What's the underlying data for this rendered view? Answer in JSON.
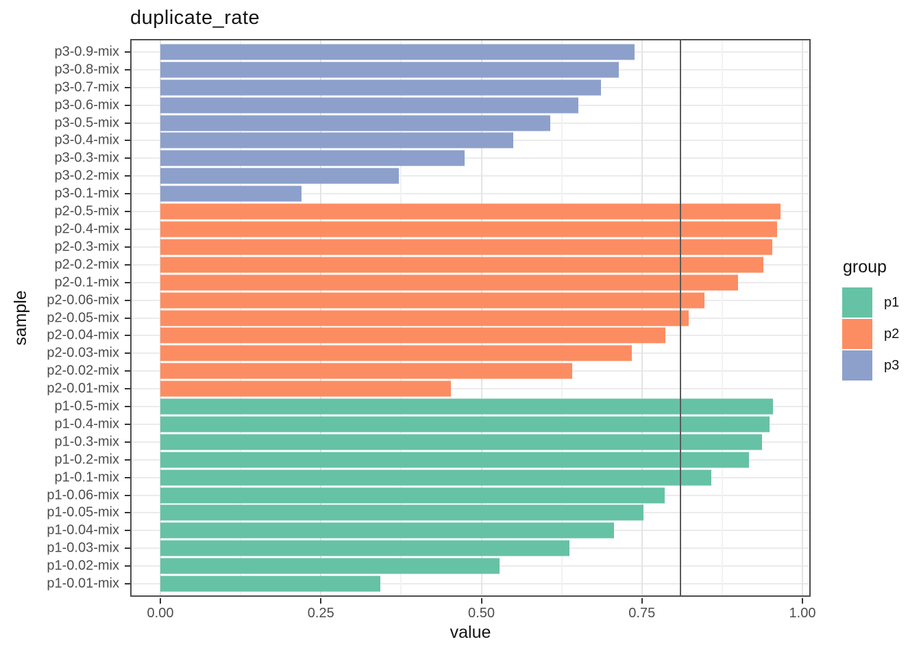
{
  "chart_data": {
    "type": "bar",
    "orientation": "horizontal",
    "title": "duplicate_rate",
    "xlabel": "value",
    "ylabel": "sample",
    "xlim": [
      0,
      1.0
    ],
    "grid": true,
    "x_ticks": [
      {
        "value": 0,
        "label": "0.00"
      },
      {
        "value": 0.25,
        "label": "0.25"
      },
      {
        "value": 0.5,
        "label": "0.50"
      },
      {
        "value": 0.75,
        "label": "0.75"
      },
      {
        "value": 1.0,
        "label": "1.00"
      }
    ],
    "x_minor_gridlines": [
      0.125,
      0.375,
      0.625,
      0.875
    ],
    "reference_line": {
      "orientation": "vertical",
      "value": 0.81,
      "color": "#595959"
    },
    "legend": {
      "title": "group",
      "position": "right",
      "entries": [
        {
          "label": "p1",
          "color": "#66c2a5"
        },
        {
          "label": "p2",
          "color": "#fc8d62"
        },
        {
          "label": "p3",
          "color": "#8da0cb"
        }
      ]
    },
    "group_colors": {
      "p1": "#66c2a5",
      "p2": "#fc8d62",
      "p3": "#8da0cb"
    },
    "bars": [
      {
        "sample": "p3-0.9-mix",
        "group": "p3",
        "value": 0.738
      },
      {
        "sample": "p3-0.8-mix",
        "group": "p3",
        "value": 0.714
      },
      {
        "sample": "p3-0.7-mix",
        "group": "p3",
        "value": 0.686
      },
      {
        "sample": "p3-0.6-mix",
        "group": "p3",
        "value": 0.651
      },
      {
        "sample": "p3-0.5-mix",
        "group": "p3",
        "value": 0.607
      },
      {
        "sample": "p3-0.4-mix",
        "group": "p3",
        "value": 0.55
      },
      {
        "sample": "p3-0.3-mix",
        "group": "p3",
        "value": 0.474
      },
      {
        "sample": "p3-0.2-mix",
        "group": "p3",
        "value": 0.371
      },
      {
        "sample": "p3-0.1-mix",
        "group": "p3",
        "value": 0.22
      },
      {
        "sample": "p2-0.5-mix",
        "group": "p2",
        "value": 0.966
      },
      {
        "sample": "p2-0.4-mix",
        "group": "p2",
        "value": 0.96
      },
      {
        "sample": "p2-0.3-mix",
        "group": "p2",
        "value": 0.953
      },
      {
        "sample": "p2-0.2-mix",
        "group": "p2",
        "value": 0.939
      },
      {
        "sample": "p2-0.1-mix",
        "group": "p2",
        "value": 0.9
      },
      {
        "sample": "p2-0.06-mix",
        "group": "p2",
        "value": 0.847
      },
      {
        "sample": "p2-0.05-mix",
        "group": "p2",
        "value": 0.823
      },
      {
        "sample": "p2-0.04-mix",
        "group": "p2",
        "value": 0.787
      },
      {
        "sample": "p2-0.03-mix",
        "group": "p2",
        "value": 0.734
      },
      {
        "sample": "p2-0.02-mix",
        "group": "p2",
        "value": 0.641
      },
      {
        "sample": "p2-0.01-mix",
        "group": "p2",
        "value": 0.453
      },
      {
        "sample": "p1-0.5-mix",
        "group": "p1",
        "value": 0.954
      },
      {
        "sample": "p1-0.4-mix",
        "group": "p1",
        "value": 0.949
      },
      {
        "sample": "p1-0.3-mix",
        "group": "p1",
        "value": 0.937
      },
      {
        "sample": "p1-0.2-mix",
        "group": "p1",
        "value": 0.917
      },
      {
        "sample": "p1-0.1-mix",
        "group": "p1",
        "value": 0.858
      },
      {
        "sample": "p1-0.06-mix",
        "group": "p1",
        "value": 0.785
      },
      {
        "sample": "p1-0.05-mix",
        "group": "p1",
        "value": 0.752
      },
      {
        "sample": "p1-0.04-mix",
        "group": "p1",
        "value": 0.706
      },
      {
        "sample": "p1-0.03-mix",
        "group": "p1",
        "value": 0.637
      },
      {
        "sample": "p1-0.02-mix",
        "group": "p1",
        "value": 0.528
      },
      {
        "sample": "p1-0.01-mix",
        "group": "p1",
        "value": 0.343
      }
    ]
  }
}
